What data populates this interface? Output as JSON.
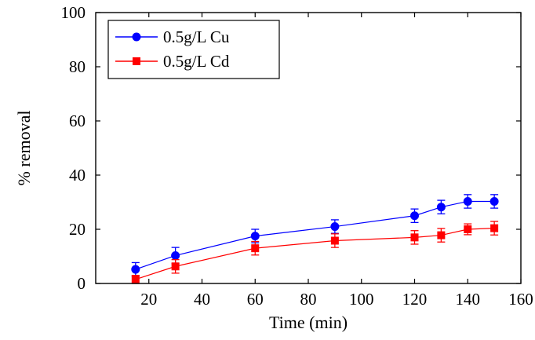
{
  "chart_data": {
    "type": "line",
    "title": "",
    "xlabel": "Time (min)",
    "ylabel": "% removal",
    "xlim": [
      0,
      160
    ],
    "ylim": [
      0,
      100
    ],
    "x_ticks": [
      20,
      40,
      60,
      80,
      100,
      120,
      140,
      160
    ],
    "y_ticks": [
      0,
      20,
      40,
      60,
      80,
      100
    ],
    "x_tick_labels": [
      "20",
      "40",
      "60",
      "80",
      "100",
      "120",
      "140",
      "160"
    ],
    "y_tick_labels": [
      "0",
      "20",
      "40",
      "60",
      "80",
      "100"
    ],
    "grid": false,
    "legend_position": "top-left",
    "x": [
      15,
      30,
      60,
      90,
      120,
      130,
      140,
      150
    ],
    "series": [
      {
        "name": "0.5g/L Cu",
        "color": "#0000ff",
        "marker": "circle",
        "values": [
          5.2,
          10.3,
          17.5,
          21.0,
          25.0,
          28.2,
          30.3,
          30.3
        ],
        "error": [
          2.5,
          3.0,
          2.5,
          2.5,
          2.5,
          2.5,
          2.5,
          2.5
        ]
      },
      {
        "name": "0.5g/L Cd",
        "color": "#ff0000",
        "marker": "square",
        "values": [
          1.5,
          6.3,
          13.0,
          15.8,
          17.0,
          17.8,
          20.0,
          20.4
        ],
        "error": [
          1.5,
          2.5,
          2.5,
          2.5,
          2.5,
          2.5,
          2.0,
          2.5
        ]
      }
    ]
  }
}
